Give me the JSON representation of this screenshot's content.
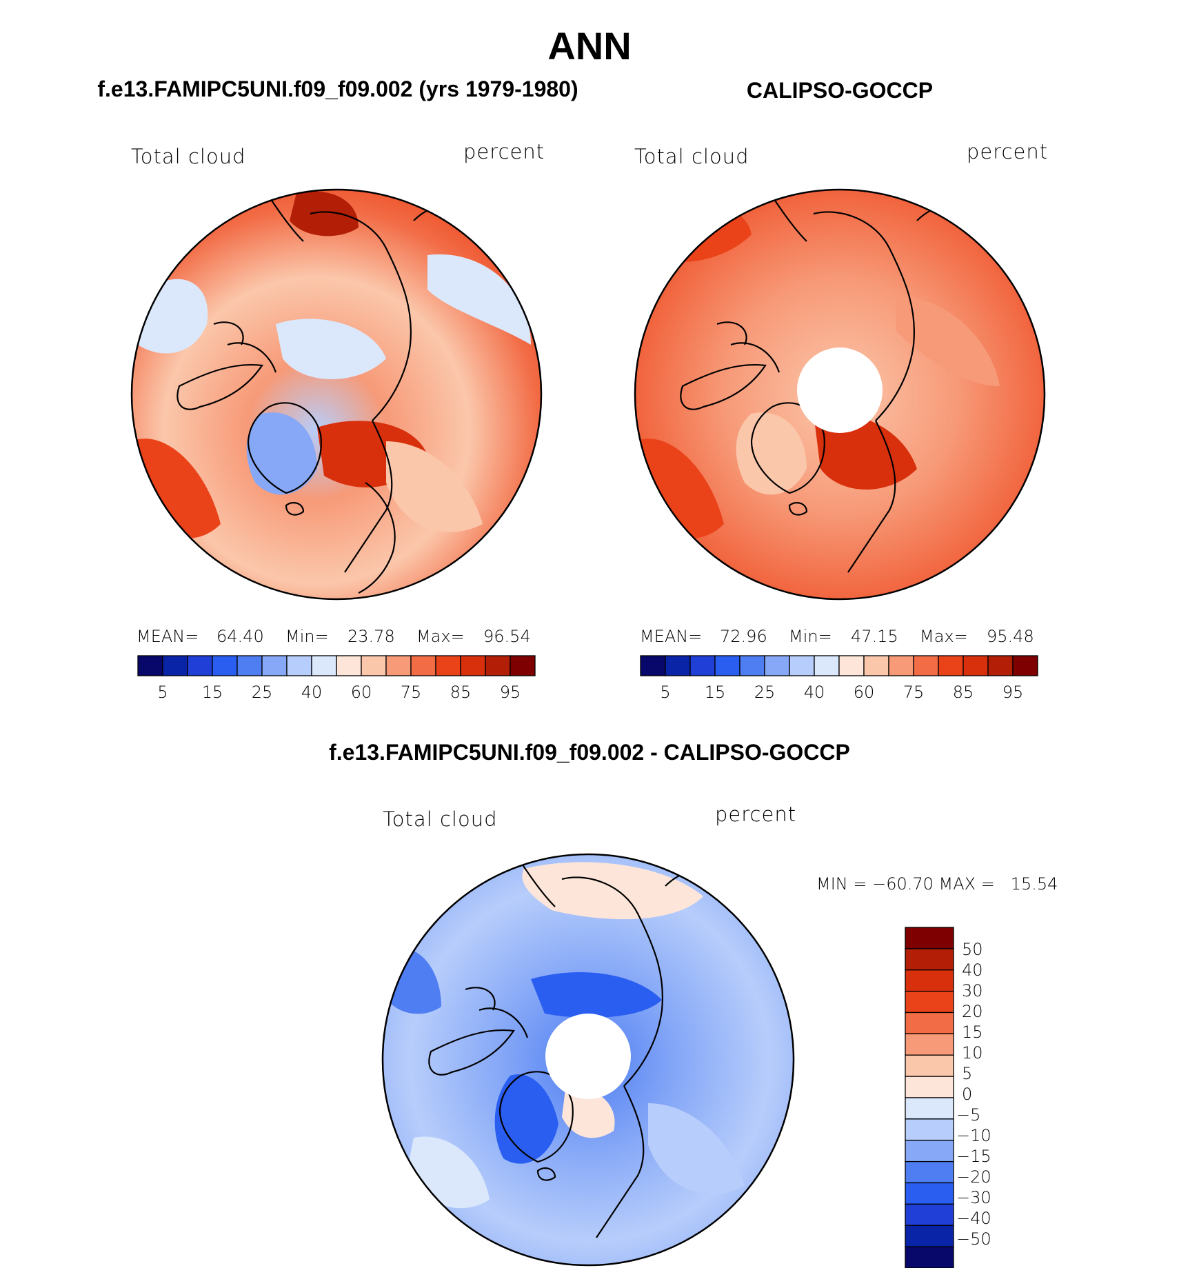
{
  "figure": {
    "title": "ANN",
    "panel1_title": "f.e13.FAMIPC5UNI.f09_f09.002 (yrs 1979-1980)",
    "panel2_title": "CALIPSO-GOCCP",
    "panel3_title": "f.e13.FAMIPC5UNI.f09_f09.002 - CALIPSO-GOCCP"
  },
  "panels": [
    {
      "variable": "Total cloud",
      "units": "percent",
      "mean_label": "MEAN=",
      "mean": "64.40",
      "min_label": "Min=",
      "min": "23.78",
      "max_label": "Max=",
      "max": "96.54"
    },
    {
      "variable": "Total cloud",
      "units": "percent",
      "mean_label": "MEAN=",
      "mean": "72.96",
      "min_label": "Min=",
      "min": "47.15",
      "max_label": "Max=",
      "max": "95.48"
    },
    {
      "variable": "Total cloud",
      "units": "percent",
      "minmax_text": "MIN = −60.70 MAX =   15.54"
    }
  ],
  "colorbars": {
    "absolute": {
      "colors": [
        "#08086b",
        "#0a24a8",
        "#1f3fd6",
        "#2a5ef0",
        "#4f7ef2",
        "#86a8f7",
        "#b7cdfb",
        "#dbe8fc",
        "#fde6d9",
        "#fbc7ab",
        "#f79a78",
        "#f26c46",
        "#ea4319",
        "#d8300d",
        "#b31e06",
        "#7f0000"
      ],
      "tick_labels": [
        "5",
        "15",
        "25",
        "40",
        "60",
        "75",
        "85",
        "95"
      ]
    },
    "difference": {
      "colors": [
        "#08086b",
        "#0a24a8",
        "#1f3fd6",
        "#2a5ef0",
        "#4f7ef2",
        "#86a8f7",
        "#b7cdfb",
        "#dbe8fc",
        "#fde6d9",
        "#fbc7ab",
        "#f79a78",
        "#f26c46",
        "#ea4319",
        "#d8300d",
        "#b31e06",
        "#7f0000"
      ],
      "tick_labels": [
        "50",
        "40",
        "30",
        "20",
        "15",
        "10",
        "5",
        "0",
        "−5",
        "−10",
        "−15",
        "−20",
        "−30",
        "−40",
        "−50"
      ]
    }
  },
  "chart_data": [
    {
      "type": "heatmap",
      "title": "f.e13.FAMIPC5UNI.f09_f09.002 (yrs 1979-1980)",
      "projection": "north polar stereographic",
      "variable": "Total cloud",
      "units": "percent",
      "levels": [
        5,
        10,
        15,
        20,
        25,
        30,
        40,
        50,
        60,
        70,
        75,
        80,
        85,
        90,
        95
      ],
      "mean": 64.4,
      "min": 23.78,
      "max": 96.54
    },
    {
      "type": "heatmap",
      "title": "CALIPSO-GOCCP",
      "projection": "north polar stereographic",
      "variable": "Total cloud",
      "units": "percent",
      "levels": [
        5,
        10,
        15,
        20,
        25,
        30,
        40,
        50,
        60,
        70,
        75,
        80,
        85,
        90,
        95
      ],
      "mean": 72.96,
      "min": 47.15,
      "max": 95.48
    },
    {
      "type": "heatmap",
      "title": "f.e13.FAMIPC5UNI.f09_f09.002 - CALIPSO-GOCCP",
      "projection": "north polar stereographic",
      "variable": "Total cloud",
      "units": "percent",
      "levels": [
        -50,
        -40,
        -30,
        -20,
        -15,
        -10,
        -5,
        0,
        5,
        10,
        15,
        20,
        30,
        40,
        50
      ],
      "min": -60.7,
      "max": 15.54
    }
  ]
}
